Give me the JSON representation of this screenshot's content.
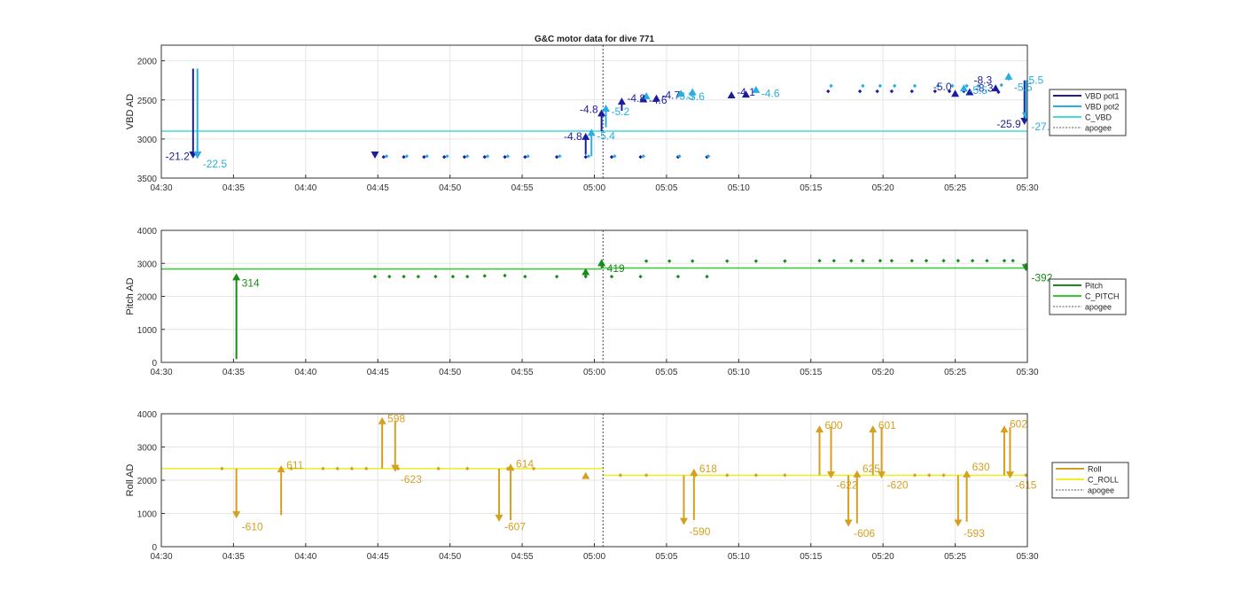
{
  "chart_data": [
    {
      "type": "line",
      "title": "G&C motor data for dive 771",
      "xlabel": "",
      "ylabel": "VBD AD",
      "y_reversed": true,
      "ylim": [
        1800,
        3500
      ],
      "yticks": [
        2000,
        2500,
        3000,
        3500
      ],
      "xlim_min": [
        270,
        330
      ],
      "xticks": [
        "04:30",
        "04:35",
        "04:40",
        "04:45",
        "04:50",
        "04:55",
        "05:00",
        "05:05",
        "05:10",
        "05:15",
        "05:20",
        "05:25",
        "05:30"
      ],
      "grid": true,
      "legend_position": "right",
      "apogee_min": 300.6,
      "colors": {
        "pot1": "#1c1c9e",
        "pot2": "#28aee0",
        "command": "#44dcdc"
      },
      "legend": [
        {
          "name": "VBD pot1",
          "color": "#1c1c9e",
          "dash": false
        },
        {
          "name": "VBD pot2",
          "color": "#28aee0",
          "dash": false
        },
        {
          "name": "C_VBD",
          "color": "#44dcdc",
          "dash": false
        },
        {
          "name": "apogee",
          "color": "#555555",
          "dash": true
        }
      ],
      "command_level": 2900,
      "dots_pot1": [
        [
          285.4,
          3230
        ],
        [
          286.8,
          3230
        ],
        [
          288.2,
          3230
        ],
        [
          289.6,
          3230
        ],
        [
          291.0,
          3230
        ],
        [
          292.4,
          3230
        ],
        [
          293.8,
          3230
        ],
        [
          295.2,
          3230
        ],
        [
          297.4,
          3230
        ],
        [
          299.4,
          3230
        ],
        [
          301.2,
          3230
        ],
        [
          303.2,
          3230
        ],
        [
          305.8,
          3230
        ],
        [
          307.8,
          3230
        ],
        [
          316.2,
          2390
        ],
        [
          318.4,
          2390
        ],
        [
          319.6,
          2390
        ],
        [
          320.6,
          2390
        ],
        [
          322.0,
          2390
        ],
        [
          323.6,
          2390
        ],
        [
          324.6,
          2390
        ],
        [
          325.6,
          2390
        ],
        [
          328.0,
          2400
        ]
      ],
      "dots_pot2": [
        [
          285.6,
          3220
        ],
        [
          287.0,
          3220
        ],
        [
          288.4,
          3220
        ],
        [
          289.8,
          3220
        ],
        [
          291.2,
          3220
        ],
        [
          292.6,
          3220
        ],
        [
          294.0,
          3220
        ],
        [
          295.4,
          3220
        ],
        [
          297.6,
          3220
        ],
        [
          299.6,
          3220
        ],
        [
          301.4,
          3220
        ],
        [
          303.4,
          3220
        ],
        [
          305.9,
          3220
        ],
        [
          307.9,
          3220
        ],
        [
          316.4,
          2320
        ],
        [
          318.6,
          2320
        ],
        [
          319.8,
          2320
        ],
        [
          320.8,
          2320
        ],
        [
          322.2,
          2320
        ],
        [
          323.8,
          2320
        ],
        [
          324.8,
          2320
        ],
        [
          325.8,
          2320
        ],
        [
          326.6,
          2320
        ],
        [
          328.2,
          2310
        ]
      ],
      "arrows_pot1": [
        {
          "x": 272.2,
          "from": 2100,
          "to": 3250,
          "label": "-21.2",
          "lab_side": "left",
          "lab_y": 3220
        },
        {
          "x": 272.5,
          "from": 3200,
          "to": 3250,
          "label": "",
          "lab_side": "left",
          "lab_y": 3220
        },
        {
          "x": 284.8,
          "from": 3200,
          "to": 3250,
          "label": "",
          "lab_side": "left",
          "lab_y": 3220
        },
        {
          "x": 299.4,
          "from": 3200,
          "to": 2920,
          "label": "-4.8",
          "lab_side": "left",
          "lab_y": 2970
        },
        {
          "x": 300.5,
          "from": 2900,
          "to": 2620,
          "label": "-4.8",
          "lab_side": "left",
          "lab_y": 2620
        },
        {
          "x": 301.9,
          "from": 2640,
          "to": 2470,
          "label": "-4.8",
          "lab_side": "right",
          "lab_y": 2480
        },
        {
          "x": 303.4,
          "from": 2500,
          "to": 2440,
          "label": "-4.6",
          "lab_side": "right",
          "lab_y": 2500
        },
        {
          "x": 304.3,
          "from": 2480,
          "to": 2430,
          "label": "-4.7",
          "lab_side": "right",
          "lab_y": 2440
        },
        {
          "x": 309.5,
          "from": 2450,
          "to": 2390,
          "label": "-4.1",
          "lab_side": "right",
          "lab_y": 2400
        },
        {
          "x": 310.5,
          "from": 2420,
          "to": 2380,
          "label": "",
          "lab_side": "right",
          "lab_y": 2400
        },
        {
          "x": 325.0,
          "from": 2420,
          "to": 2370,
          "label": "-5.0",
          "lab_side": "left",
          "lab_y": 2330
        },
        {
          "x": 326.0,
          "from": 2400,
          "to": 2350,
          "label": "-8.3",
          "lab_side": "right",
          "lab_y": 2350
        },
        {
          "x": 327.8,
          "from": 2350,
          "to": 2300,
          "label": "-8.3",
          "lab_side": "left",
          "lab_y": 2250
        },
        {
          "x": 329.8,
          "from": 2250,
          "to": 2820,
          "label": "-25.9",
          "lab_side": "left",
          "lab_y": 2810
        }
      ],
      "arrows_pot2": [
        {
          "x": 272.5,
          "from": 2100,
          "to": 3250,
          "label": "-22.5",
          "lab_side": "right",
          "lab_y": 3320
        },
        {
          "x": 299.8,
          "from": 3220,
          "to": 2870,
          "label": "-5.4",
          "lab_side": "right",
          "lab_y": 2960
        },
        {
          "x": 300.8,
          "from": 2850,
          "to": 2560,
          "label": "-5.2",
          "lab_side": "right",
          "lab_y": 2650
        },
        {
          "x": 303.6,
          "from": 2440,
          "to": 2400,
          "label": "",
          "lab_side": "right",
          "lab_y": 2500
        },
        {
          "x": 306.0,
          "from": 2420,
          "to": 2370,
          "label": "-3.6",
          "lab_side": "right",
          "lab_y": 2460
        },
        {
          "x": 306.8,
          "from": 2400,
          "to": 2350,
          "label": "",
          "lab_side": "right",
          "lab_y": 2460
        },
        {
          "x": 311.2,
          "from": 2380,
          "to": 2320,
          "label": "-4.6",
          "lab_side": "right",
          "lab_y": 2420
        },
        {
          "x": 325.6,
          "from": 2350,
          "to": 2300,
          "label": "-5.5",
          "lab_side": "right",
          "lab_y": 2380
        },
        {
          "x": 328.7,
          "from": 2250,
          "to": 2150,
          "label": "-5.5",
          "lab_side": "right",
          "lab_y": 2340
        },
        {
          "x": 329.9,
          "from": 2250,
          "to": 2750,
          "label": "-27.",
          "lab_side": "right",
          "lab_y": 2840
        }
      ],
      "extra_labels": [
        {
          "x": 305.4,
          "y": 2450,
          "text": "-3.3",
          "series": "pot2"
        },
        {
          "x": 329.6,
          "y": 2250,
          "text": "-5.5",
          "series": "pot2"
        }
      ]
    },
    {
      "type": "line",
      "title": "",
      "xlabel": "",
      "ylabel": "Pitch AD",
      "y_reversed": false,
      "ylim": [
        0,
        4000
      ],
      "yticks": [
        0,
        1000,
        2000,
        3000,
        4000
      ],
      "xlim_min": [
        270,
        330
      ],
      "xticks": [
        "04:30",
        "04:35",
        "04:40",
        "04:45",
        "04:50",
        "04:55",
        "05:00",
        "05:05",
        "05:10",
        "05:15",
        "05:20",
        "05:25",
        "05:30"
      ],
      "grid": true,
      "legend_position": "right",
      "apogee_min": 300.6,
      "colors": {
        "value": "#1a8a1a",
        "command": "#33cc33"
      },
      "legend": [
        {
          "name": "Pitch",
          "color": "#1a8a1a",
          "dash": false
        },
        {
          "name": "C_PITCH",
          "color": "#33cc33",
          "dash": false
        },
        {
          "name": "apogee",
          "color": "#555555",
          "dash": true
        }
      ],
      "command_segments": [
        [
          270,
          300.5,
          2830
        ],
        [
          300.5,
          330,
          2860
        ]
      ],
      "dots": [
        [
          284.8,
          2600
        ],
        [
          285.8,
          2600
        ],
        [
          286.8,
          2600
        ],
        [
          287.8,
          2600
        ],
        [
          289.0,
          2600
        ],
        [
          290.2,
          2600
        ],
        [
          291.2,
          2600
        ],
        [
          292.4,
          2620
        ],
        [
          293.8,
          2630
        ],
        [
          295.2,
          2600
        ],
        [
          297.4,
          2600
        ],
        [
          299.4,
          2600
        ],
        [
          301.2,
          2600
        ],
        [
          303.2,
          2600
        ],
        [
          305.8,
          2600
        ],
        [
          307.8,
          2600
        ],
        [
          303.6,
          3070
        ],
        [
          305.2,
          3070
        ],
        [
          306.8,
          3070
        ],
        [
          309.2,
          3070
        ],
        [
          311.2,
          3070
        ],
        [
          313.2,
          3070
        ],
        [
          315.6,
          3080
        ],
        [
          316.6,
          3080
        ],
        [
          317.8,
          3080
        ],
        [
          318.6,
          3080
        ],
        [
          319.8,
          3080
        ],
        [
          320.6,
          3080
        ],
        [
          322.0,
          3080
        ],
        [
          323.0,
          3080
        ],
        [
          324.2,
          3080
        ],
        [
          325.2,
          3080
        ],
        [
          326.2,
          3080
        ],
        [
          327.2,
          3080
        ],
        [
          328.4,
          3080
        ],
        [
          329.0,
          3080
        ]
      ],
      "arrows": [
        {
          "x": 275.2,
          "from": 100,
          "to": 2700,
          "label": "314",
          "lab_side": "right",
          "lab_y": 2400
        },
        {
          "x": 299.4,
          "from": 2620,
          "to": 2860,
          "label": "",
          "lab_side": "right",
          "lab_y": 2600
        },
        {
          "x": 300.5,
          "from": 2850,
          "to": 3130,
          "label": "419",
          "lab_side": "right",
          "lab_y": 2850
        },
        {
          "x": 329.9,
          "from": 3000,
          "to": 2760,
          "label": "-392",
          "lab_side": "right",
          "lab_y": 2560
        }
      ]
    },
    {
      "type": "line",
      "title": "",
      "xlabel": "",
      "ylabel": "Roll AD",
      "y_reversed": false,
      "ylim": [
        0,
        4000
      ],
      "yticks": [
        0,
        1000,
        2000,
        3000,
        4000
      ],
      "xlim_min": [
        270,
        330
      ],
      "xticks": [
        "04:30",
        "04:35",
        "04:40",
        "04:45",
        "04:50",
        "04:55",
        "05:00",
        "05:05",
        "05:10",
        "05:15",
        "05:20",
        "05:25",
        "05:30"
      ],
      "grid": true,
      "legend_position": "right",
      "apogee_min": 300.6,
      "colors": {
        "value": "#d4a020",
        "command": "#eeee22"
      },
      "legend": [
        {
          "name": "Roll",
          "color": "#d4a020",
          "dash": false
        },
        {
          "name": "C_ROLL",
          "color": "#eeee22",
          "dash": false
        },
        {
          "name": "apogee",
          "color": "#555555",
          "dash": true
        }
      ],
      "command_segments": [
        [
          270,
          300.6,
          2350
        ],
        [
          300.6,
          330,
          2150
        ]
      ],
      "dots": [
        [
          274.2,
          2350
        ],
        [
          279.0,
          2350
        ],
        [
          281.2,
          2350
        ],
        [
          282.2,
          2350
        ],
        [
          283.2,
          2350
        ],
        [
          284.2,
          2350
        ],
        [
          286.4,
          2350
        ],
        [
          289.2,
          2350
        ],
        [
          291.2,
          2350
        ],
        [
          294.0,
          2350
        ],
        [
          295.8,
          2350
        ],
        [
          301.8,
          2150
        ],
        [
          303.6,
          2150
        ],
        [
          307.0,
          2150
        ],
        [
          309.2,
          2150
        ],
        [
          311.2,
          2150
        ],
        [
          313.2,
          2150
        ],
        [
          322.2,
          2150
        ],
        [
          323.2,
          2150
        ],
        [
          324.2,
          2150
        ],
        [
          329.9,
          2150
        ]
      ],
      "arrows": [
        {
          "x": 275.2,
          "from": 2350,
          "to": 850,
          "label": "-610",
          "lab_side": "right",
          "lab_y": 600
        },
        {
          "x": 278.3,
          "from": 950,
          "to": 2450,
          "label": "611",
          "lab_side": "right",
          "lab_y": 2450
        },
        {
          "x": 285.3,
          "from": 2350,
          "to": 3900,
          "label": "598",
          "lab_side": "right",
          "lab_y": 3850
        },
        {
          "x": 286.2,
          "from": 3800,
          "to": 2250,
          "label": "-623",
          "lab_side": "right",
          "lab_y": 2030
        },
        {
          "x": 293.4,
          "from": 2350,
          "to": 750,
          "label": "-607",
          "lab_side": "right",
          "lab_y": 600
        },
        {
          "x": 294.2,
          "from": 800,
          "to": 2500,
          "label": "614",
          "lab_side": "right",
          "lab_y": 2500
        },
        {
          "x": 299.4,
          "from": 2200,
          "to": 2250,
          "label": "",
          "lab_side": "right",
          "lab_y": 2200
        },
        {
          "x": 306.2,
          "from": 2150,
          "to": 650,
          "label": "-590",
          "lab_side": "right",
          "lab_y": 450
        },
        {
          "x": 306.9,
          "from": 800,
          "to": 2350,
          "label": "618",
          "lab_side": "right",
          "lab_y": 2350
        },
        {
          "x": 315.6,
          "from": 2150,
          "to": 3650,
          "label": "600",
          "lab_side": "right",
          "lab_y": 3650
        },
        {
          "x": 316.4,
          "from": 3600,
          "to": 2050,
          "label": "-622",
          "lab_side": "right",
          "lab_y": 1850
        },
        {
          "x": 317.6,
          "from": 2150,
          "to": 600,
          "label": "-606",
          "lab_side": "right",
          "lab_y": 400
        },
        {
          "x": 318.2,
          "from": 700,
          "to": 2300,
          "label": "625",
          "lab_side": "right",
          "lab_y": 2350
        },
        {
          "x": 319.3,
          "from": 2150,
          "to": 3650,
          "label": "601",
          "lab_side": "right",
          "lab_y": 3650
        },
        {
          "x": 319.9,
          "from": 3600,
          "to": 2050,
          "label": "-620",
          "lab_side": "right",
          "lab_y": 1850
        },
        {
          "x": 325.2,
          "from": 2150,
          "to": 600,
          "label": "-593",
          "lab_side": "right",
          "lab_y": 400
        },
        {
          "x": 325.8,
          "from": 750,
          "to": 2300,
          "label": "630",
          "lab_side": "right",
          "lab_y": 2400
        },
        {
          "x": 328.4,
          "from": 2150,
          "to": 3650,
          "label": "602",
          "lab_side": "right",
          "lab_y": 3700
        },
        {
          "x": 328.8,
          "from": 3600,
          "to": 2050,
          "label": "-615",
          "lab_side": "right",
          "lab_y": 1850
        }
      ]
    }
  ]
}
